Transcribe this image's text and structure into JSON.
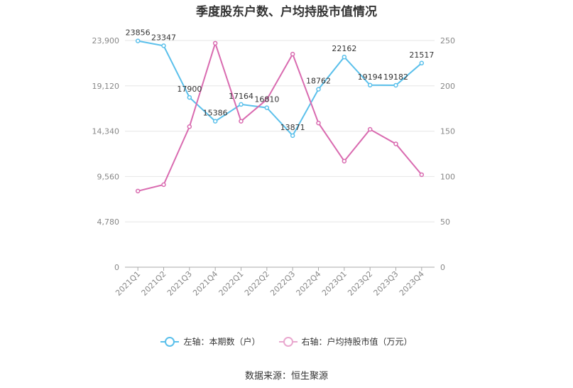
{
  "page": {
    "title": "季度股东户数、户均持股市值情况",
    "source": "数据来源：恒生聚源"
  },
  "chart_data": {
    "type": "line",
    "title": "季度股东户数、户均持股市值情况",
    "categories": [
      "2021Q1",
      "2021Q2",
      "2021Q3",
      "2021Q4",
      "2022Q1",
      "2022Q2",
      "2022Q3",
      "2022Q4",
      "2023Q1",
      "2023Q2",
      "2023Q3",
      "2023Q4"
    ],
    "left_axis": {
      "ylim": [
        0,
        23900
      ],
      "ticks": [
        "0",
        "4,780",
        "9,560",
        "14,340",
        "19,120",
        "23,900"
      ]
    },
    "right_axis": {
      "ylim": [
        0,
        250
      ],
      "ticks": [
        "0",
        "50",
        "100",
        "150",
        "200",
        "250"
      ]
    },
    "grid": true,
    "legend_position": "bottom",
    "series": [
      {
        "name": "左轴：本期数（户）",
        "axis": "left",
        "color": "#5bc0eb",
        "values": [
          23856,
          23347,
          17900,
          15386,
          17164,
          16810,
          13871,
          18762,
          22162,
          19194,
          19182,
          21517
        ],
        "labels": [
          "23856",
          "23347",
          "17900",
          "15386",
          "17164",
          "16810",
          "13871",
          "18762",
          "22162",
          "19194",
          "19182",
          "21517"
        ]
      },
      {
        "name": "右轴：户均持股市值（万元）",
        "axis": "right",
        "color": "#d96bb0",
        "values": [
          84,
          91,
          155,
          247,
          161,
          185,
          235,
          159,
          117,
          152,
          136,
          102
        ]
      }
    ]
  }
}
